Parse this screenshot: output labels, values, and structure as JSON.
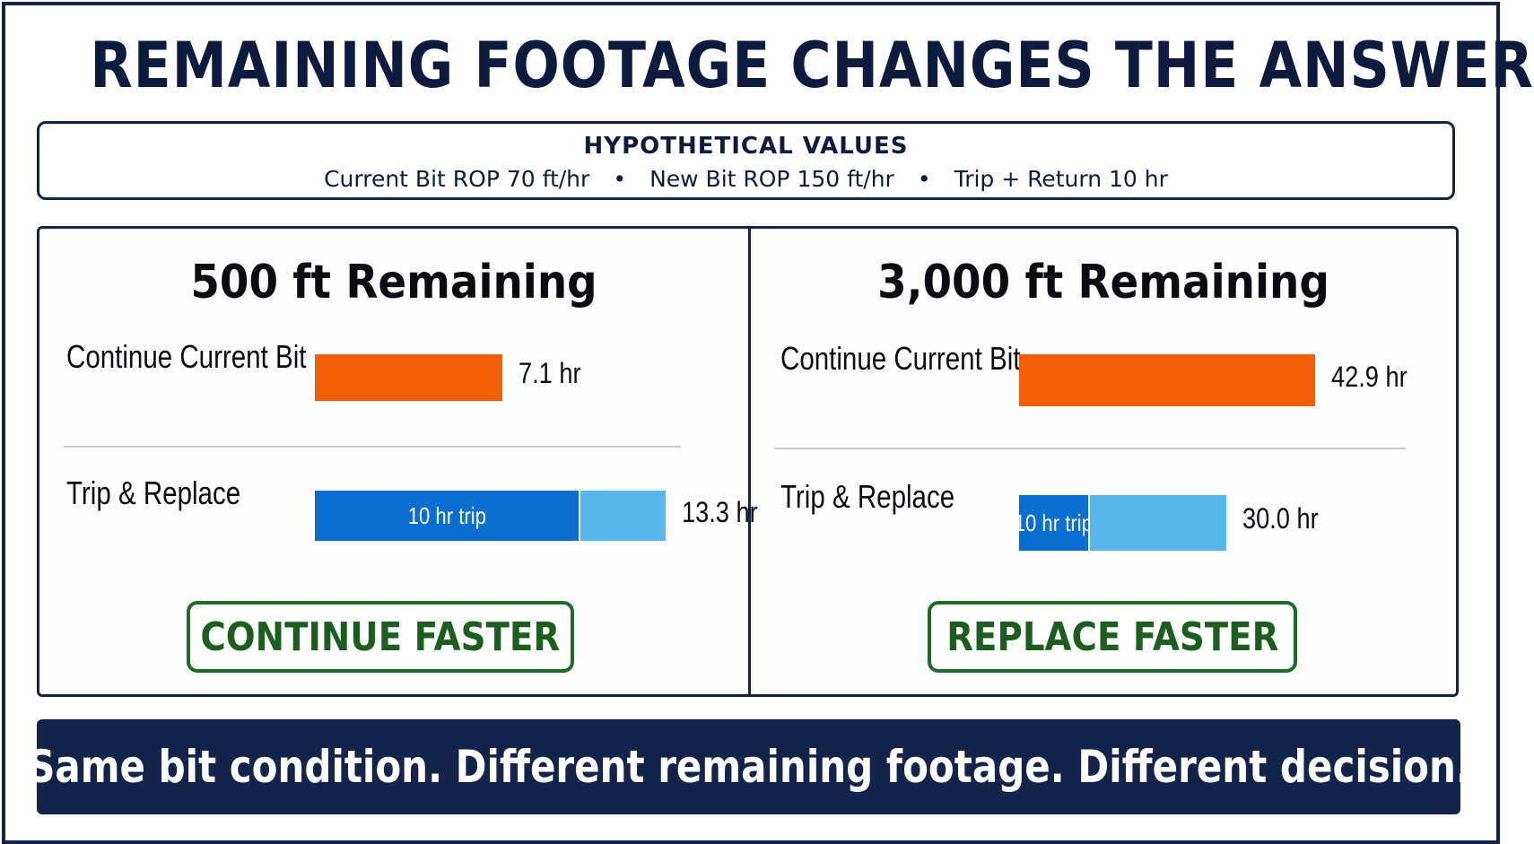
{
  "title": "REMAINING FOOTAGE CHANGES THE ANSWER",
  "assumptions": {
    "heading": "HYPOTHETICAL VALUES",
    "items": [
      "Current Bit ROP 70 ft/hr",
      "New Bit ROP 150 ft/hr",
      "Trip + Return 10 hr"
    ]
  },
  "colors": {
    "navy": "#13234a",
    "continue_bar": "#f25f06",
    "trip_segment": "#0b6fd1",
    "new_bit_segment": "#57b6ea",
    "verdict_green": "#1e6b2a"
  },
  "chart_data": [
    {
      "type": "bar",
      "title": "500 ft Remaining",
      "categories": [
        "Continue Current Bit",
        "Trip & Replace"
      ],
      "values": [
        7.1,
        13.3
      ],
      "value_labels": [
        "7.1 hr",
        "13.3 hr"
      ],
      "trip_segment": {
        "label": "10 hr trip",
        "value": 10
      },
      "verdict": "CONTINUE FASTER"
    },
    {
      "type": "bar",
      "title": "3,000 ft Remaining",
      "categories": [
        "Continue Current Bit",
        "Trip & Replace"
      ],
      "values": [
        42.9,
        30.0
      ],
      "value_labels": [
        "42.9 hr",
        "30.0 hr"
      ],
      "trip_segment": {
        "label": "10 hr trip",
        "value": 10
      },
      "verdict": "REPLACE FASTER"
    }
  ],
  "footer": "Same bit condition. Different remaining footage. Different decision."
}
